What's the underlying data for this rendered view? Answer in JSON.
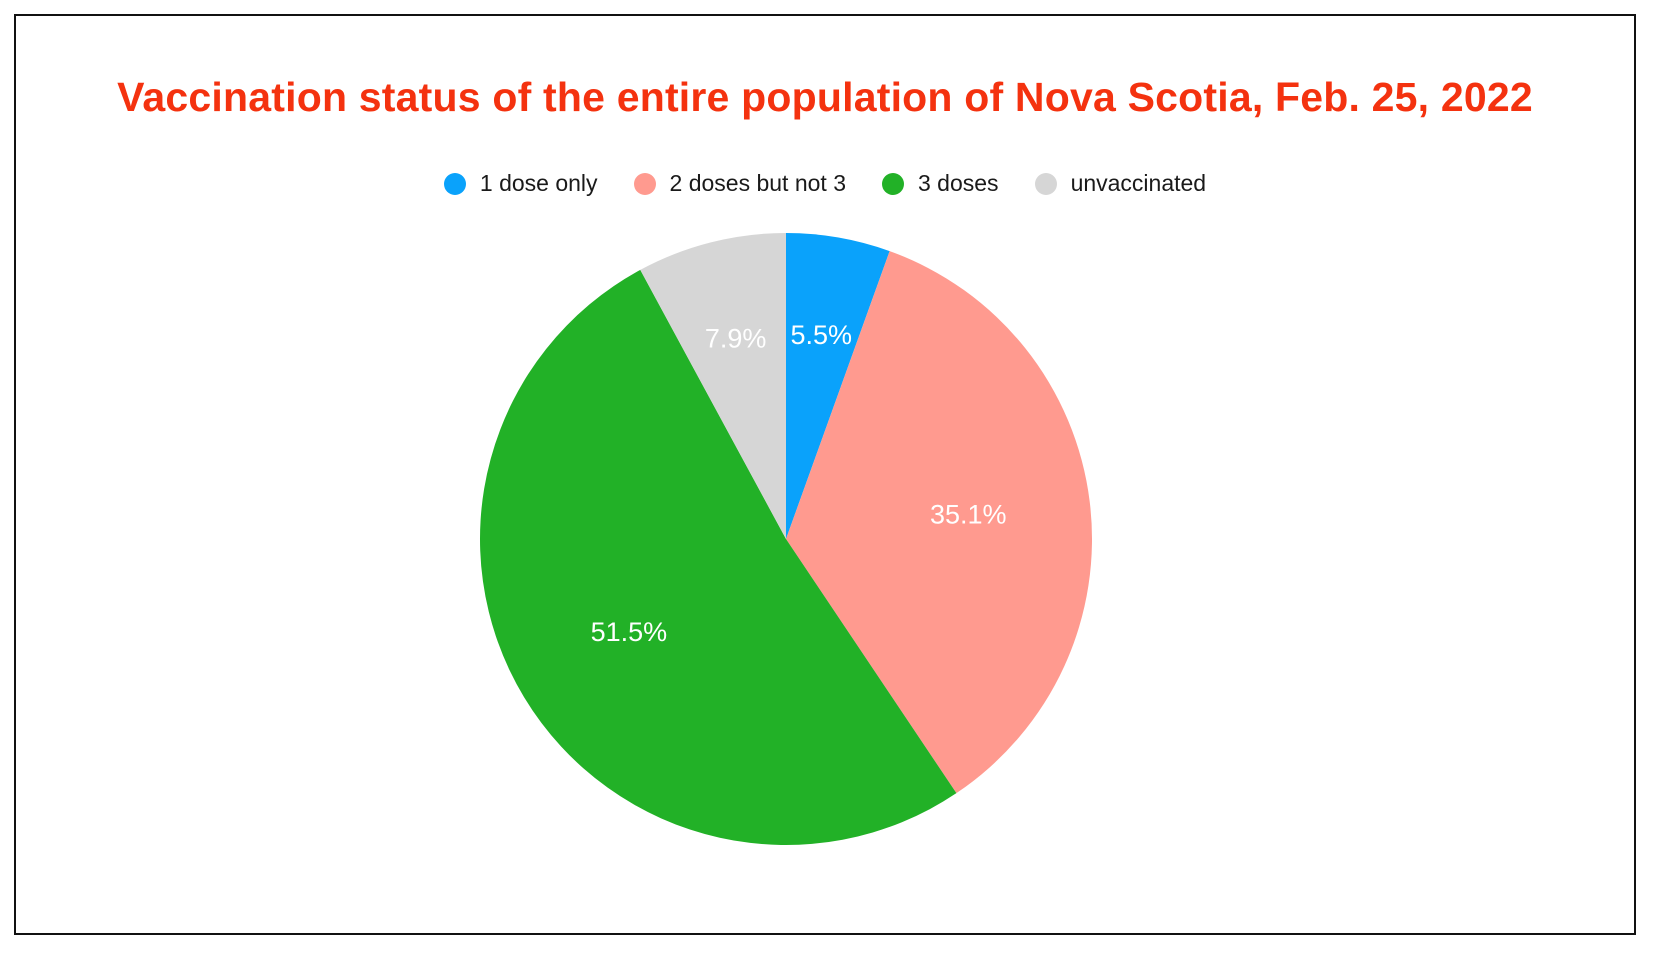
{
  "chart_data": {
    "type": "pie",
    "title": "Vaccination status of the entire population of Nova Scotia, Feb. 25, 2022",
    "legend_position": "top",
    "slices": [
      {
        "name": "1 dose only",
        "value": 5.5,
        "label": "5.5%",
        "color": "#0aa2fb"
      },
      {
        "name": "2 doses but not 3",
        "value": 35.1,
        "label": "35.1%",
        "color": "#ff9a8f"
      },
      {
        "name": "3 doses",
        "value": 51.5,
        "label": "51.5%",
        "color": "#22b127"
      },
      {
        "name": "unvaccinated",
        "value": 7.9,
        "label": "7.9%",
        "color": "#d6d6d6"
      }
    ]
  }
}
